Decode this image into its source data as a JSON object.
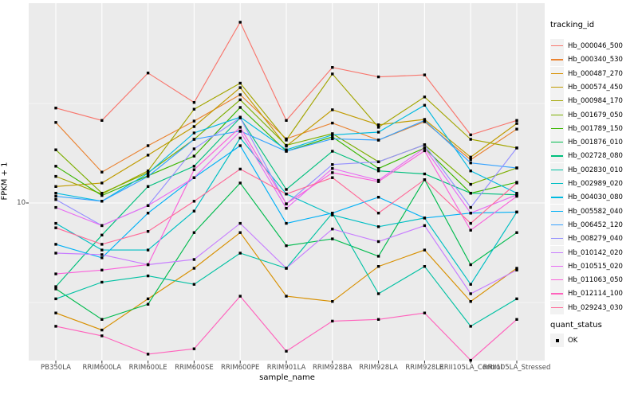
{
  "y_axis": {
    "title": "FPKM + 1",
    "tick_labels": [
      "10"
    ]
  },
  "x_axis": {
    "title": "sample_name",
    "categories": [
      "PB350LA",
      "RRIM600LA",
      "RRIM600LE",
      "RRIM600SE",
      "RRIM600PE",
      "RRIM901LA",
      "RRIM928BA",
      "RRIM928LA",
      "RRIM928LE",
      "RRII105LA_Control",
      "RRII105LA_Stressed"
    ]
  },
  "legend": {
    "tracking_title": "tracking_id",
    "quant_title": "quant_status",
    "quant_items": [
      {
        "label": "OK",
        "marker": "black-square"
      }
    ]
  },
  "style": {
    "panel_bg": "#EBEBEB",
    "grid_color": "#FFFFFF",
    "tick_color": "#333333",
    "point_color": "#000000"
  },
  "chart_data": {
    "type": "line",
    "title": "",
    "xlabel": "sample_name",
    "ylabel": "FPKM + 1",
    "y_scale": "log10",
    "ylim": [
      1.45,
      95
    ],
    "y_major_breaks": [
      10
    ],
    "y_minor_breaks": [
      3.162,
      31.62
    ],
    "grid": true,
    "legend_position": "right",
    "point_marker": "black-square",
    "categories": [
      "PB350LA",
      "RRIM600LA",
      "RRIM600LE",
      "RRIM600SE",
      "RRIM600PE",
      "RRIM901LA",
      "RRIM928BA",
      "RRIM928LA",
      "RRIM928LE",
      "RRII105LA_Control",
      "RRII105LA_Stressed"
    ],
    "series": [
      {
        "name": "Hb_000046_500",
        "color": "#F8766D",
        "values": [
          30,
          26,
          45,
          32,
          81,
          26,
          48,
          43,
          44,
          22,
          26
        ]
      },
      {
        "name": "Hb_000340_530",
        "color": "#EA8331",
        "values": [
          25.4,
          14.3,
          19.4,
          25.8,
          35,
          21,
          25.2,
          20.7,
          25.6,
          16.5,
          23.5
        ]
      },
      {
        "name": "Hb_000487_270",
        "color": "#D89000",
        "values": [
          2.8,
          2.3,
          3.3,
          4.7,
          7.1,
          3.4,
          3.2,
          4.8,
          5.8,
          3.2,
          4.7
        ]
      },
      {
        "name": "Hb_000574_450",
        "color": "#C09B00",
        "values": [
          12.1,
          12.6,
          17.4,
          24.2,
          38,
          19.3,
          29.4,
          24.7,
          26.3,
          17,
          25.1
        ]
      },
      {
        "name": "Hb_000984_170",
        "color": "#A3A500",
        "values": [
          13.6,
          11.1,
          14.5,
          29.6,
          40,
          20.7,
          44.5,
          24,
          34.1,
          20.9,
          18.9
        ]
      },
      {
        "name": "Hb_001679_050",
        "color": "#7CAE00",
        "values": [
          18.5,
          11.2,
          14.2,
          20.9,
          33,
          19.5,
          22.3,
          16.1,
          19.6,
          12.4,
          15
        ]
      },
      {
        "name": "Hb_001789_150",
        "color": "#39B600",
        "values": [
          15.3,
          10.9,
          13.7,
          17.2,
          30.2,
          18.2,
          21.5,
          14.9,
          18.9,
          11.2,
          12.7
        ]
      },
      {
        "name": "Hb_001876_010",
        "color": "#00BB4E",
        "values": [
          3.7,
          2.6,
          3.1,
          7.1,
          12.6,
          6.1,
          6.6,
          5.4,
          13.1,
          4.9,
          7.1
        ]
      },
      {
        "name": "Hb_002728_080",
        "color": "#00BF7D",
        "values": [
          3.8,
          6.9,
          12.1,
          15.3,
          26.8,
          11.7,
          18.2,
          14.5,
          14.0,
          11.2,
          11.0
        ]
      },
      {
        "name": "Hb_002830_010",
        "color": "#00C1A3",
        "values": [
          3.3,
          4.0,
          4.3,
          3.9,
          5.6,
          4.7,
          8.9,
          3.5,
          4.8,
          2.4,
          3.3
        ]
      },
      {
        "name": "Hb_002989_020",
        "color": "#00BFC4",
        "values": [
          7.9,
          5.8,
          5.8,
          9.1,
          21.2,
          11.1,
          8.7,
          7.6,
          8.4,
          3.9,
          9.0
        ]
      },
      {
        "name": "Hb_004030_080",
        "color": "#00BAE0",
        "values": [
          11.2,
          10.2,
          14.1,
          22.5,
          27,
          18.5,
          22,
          22.7,
          31,
          14.5,
          11.2
        ]
      },
      {
        "name": "Hb_005582_040",
        "color": "#00B0F6",
        "values": [
          6.2,
          5.3,
          8.9,
          13.4,
          19.4,
          7.9,
          8.9,
          10.7,
          8.4,
          8.9,
          9.0
        ]
      },
      {
        "name": "Hb_006452_120",
        "color": "#35A2FF",
        "values": [
          10.8,
          10.2,
          13.6,
          20.9,
          23,
          18.2,
          21,
          20.7,
          26,
          15.9,
          15
        ]
      },
      {
        "name": "Hb_008279_040",
        "color": "#9590FF",
        "values": [
          10.4,
          7.7,
          9.7,
          18.7,
          26.8,
          9.9,
          15.6,
          16.1,
          19.6,
          9.5,
          18.9
        ]
      },
      {
        "name": "Hb_010142_020",
        "color": "#C77CFF",
        "values": [
          5.6,
          5.5,
          4.9,
          5.2,
          7.9,
          4.7,
          7.4,
          6.4,
          7.7,
          3.5,
          4.6
        ]
      },
      {
        "name": "Hb_010515_020",
        "color": "#E76BF3",
        "values": [
          9.5,
          7.7,
          9.7,
          13.4,
          22.9,
          9.4,
          14.9,
          13.0,
          18.9,
          8.9,
          11.0
        ]
      },
      {
        "name": "Hb_011063_050",
        "color": "#FA62DB",
        "values": [
          4.4,
          4.6,
          4.9,
          14.7,
          24,
          9.9,
          14.2,
          12.8,
          18.3,
          7.3,
          10.8
        ]
      },
      {
        "name": "Hb_012114_100",
        "color": "#FF62BC",
        "values": [
          2.4,
          2.15,
          1.74,
          1.85,
          3.4,
          1.8,
          2.55,
          2.6,
          2.8,
          1.62,
          2.6
        ]
      },
      {
        "name": "Hb_029243_030",
        "color": "#FF6A98",
        "values": [
          7.5,
          6.2,
          7.2,
          10.2,
          14.8,
          11.1,
          13.4,
          8.9,
          13.1,
          7.9,
          12.6
        ]
      }
    ]
  }
}
